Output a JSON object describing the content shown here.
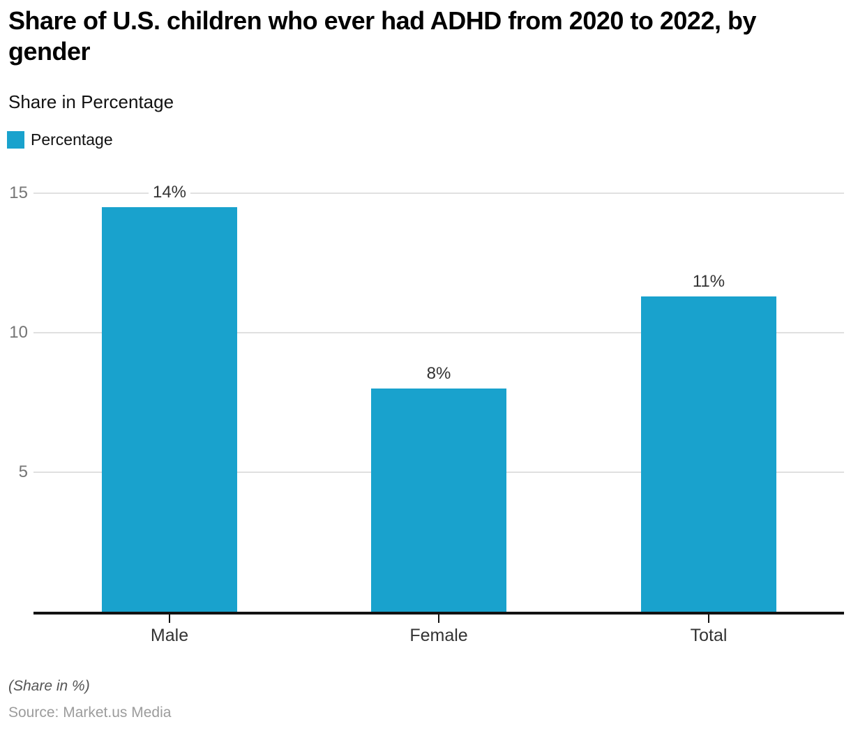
{
  "chart_data": {
    "type": "bar",
    "title": "Share of U.S. children who ever had ADHD from 2020 to 2022, by gender",
    "subtitle": "Share in Percentage",
    "legend": {
      "position": "top-left",
      "entries": [
        "Percentage"
      ]
    },
    "categories": [
      "Male",
      "Female",
      "Total"
    ],
    "series": [
      {
        "name": "Percentage",
        "values": [
          14.5,
          8,
          11.3
        ],
        "displayed_labels": [
          "14%",
          "8%",
          "11%"
        ]
      }
    ],
    "xlabel": "",
    "ylabel": "",
    "y_ticks": [
      5,
      10,
      15
    ],
    "ylim": [
      0,
      16
    ],
    "grid": "horizontal-only",
    "bar_color": "#19A2CD",
    "gridline_color": "#e0e0e0",
    "axis_color": "#121212",
    "note": "(Share in %)",
    "source": "Source: Market.us Media"
  }
}
